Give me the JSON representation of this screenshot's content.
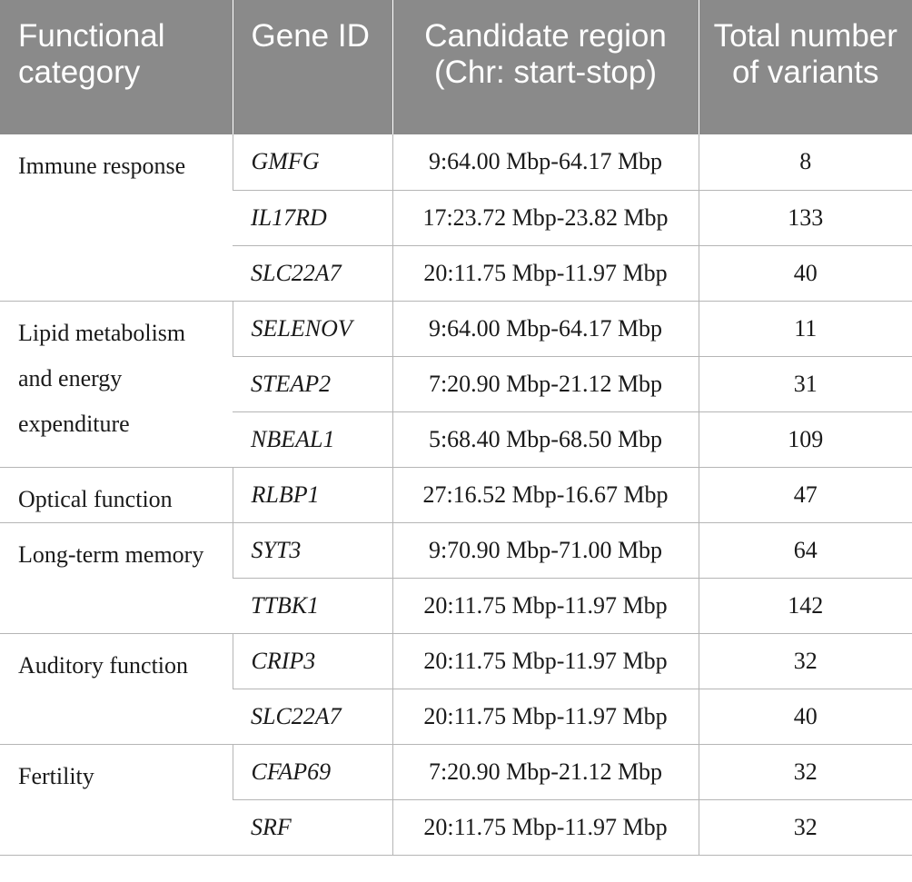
{
  "headers": {
    "category": "Functional category",
    "gene": "Gene ID",
    "region": "Candidate region (Chr: start-stop)",
    "variants": "Total number of variants"
  },
  "rows": [
    {
      "category": "Immune response",
      "span": 3,
      "gene": "GMFG",
      "region": "9:64.00 Mbp-64.17 Mbp",
      "variants": "8"
    },
    {
      "gene": "IL17RD",
      "region": "17:23.72 Mbp-23.82 Mbp",
      "variants": "133"
    },
    {
      "gene": "SLC22A7",
      "region": "20:11.75 Mbp-11.97 Mbp",
      "variants": "40"
    },
    {
      "category": "Lipid metabolism and energy expenditure",
      "span": 3,
      "gene": "SELENOV",
      "region": "9:64.00 Mbp-64.17 Mbp",
      "variants": "11"
    },
    {
      "gene": "STEAP2",
      "region": "7:20.90 Mbp-21.12 Mbp",
      "variants": "31"
    },
    {
      "gene": "NBEAL1",
      "region": "5:68.40 Mbp-68.50 Mbp",
      "variants": "109"
    },
    {
      "category": "Optical function",
      "span": 1,
      "gene": "RLBP1",
      "region": "27:16.52 Mbp-16.67 Mbp",
      "variants": "47"
    },
    {
      "category": "Long-term memory",
      "span": 2,
      "gene": "SYT3",
      "region": "9:70.90 Mbp-71.00 Mbp",
      "variants": "64"
    },
    {
      "gene": "TTBK1",
      "region": "20:11.75 Mbp-11.97 Mbp",
      "variants": "142"
    },
    {
      "category": "Auditory function",
      "span": 2,
      "gene": "CRIP3",
      "region": "20:11.75 Mbp-11.97 Mbp",
      "variants": "32"
    },
    {
      "gene": "SLC22A7",
      "region": "20:11.75 Mbp-11.97 Mbp",
      "variants": "40"
    },
    {
      "category": "Fertility",
      "span": 2,
      "gene": "CFAP69",
      "region": "7:20.90 Mbp-21.12 Mbp",
      "variants": "32"
    },
    {
      "gene": "SRF",
      "region": "20:11.75 Mbp-11.97 Mbp",
      "variants": "32"
    }
  ]
}
